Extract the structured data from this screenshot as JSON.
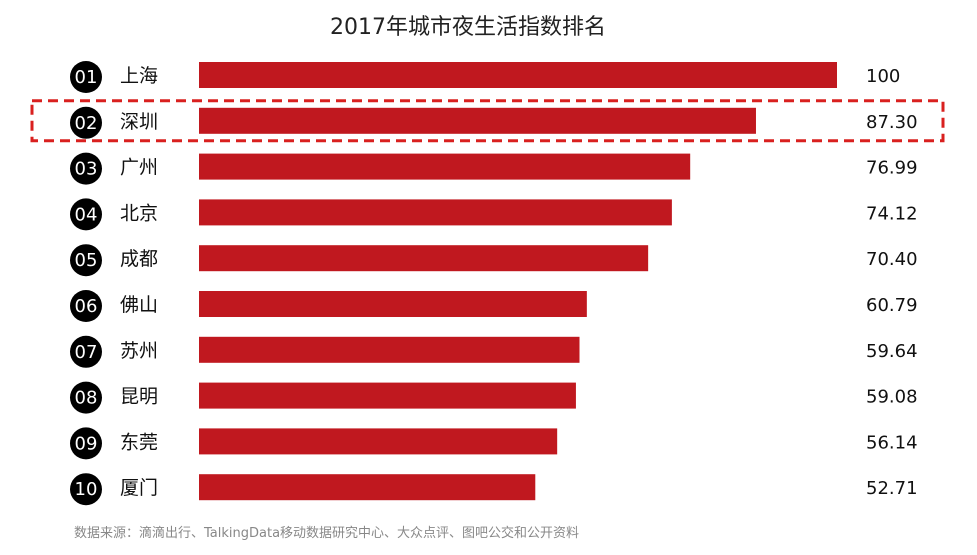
{
  "chart_data": {
    "type": "bar",
    "orientation": "horizontal",
    "title": "2017年城市夜生活指数排名",
    "ranks": [
      "01",
      "02",
      "03",
      "04",
      "05",
      "06",
      "07",
      "08",
      "09",
      "10"
    ],
    "categories": [
      "上海",
      "深圳",
      "广州",
      "北京",
      "成都",
      "佛山",
      "苏州",
      "昆明",
      "东莞",
      "厦门"
    ],
    "values": [
      100,
      87.3,
      76.99,
      74.12,
      70.4,
      60.79,
      59.64,
      59.08,
      56.14,
      52.71
    ],
    "value_labels": [
      "100",
      "87.30",
      "76.99",
      "74.12",
      "70.40",
      "60.79",
      "59.64",
      "59.08",
      "56.14",
      "52.71"
    ],
    "highlight": "深圳",
    "source": "数据来源：滴滴出行、TalkingData移动数据研究中心、大众点评、图吧公交和公开资料",
    "colors": {
      "bar": "#c0181f",
      "rank_badge": "#000000",
      "highlight_border": "#d9201f"
    }
  }
}
